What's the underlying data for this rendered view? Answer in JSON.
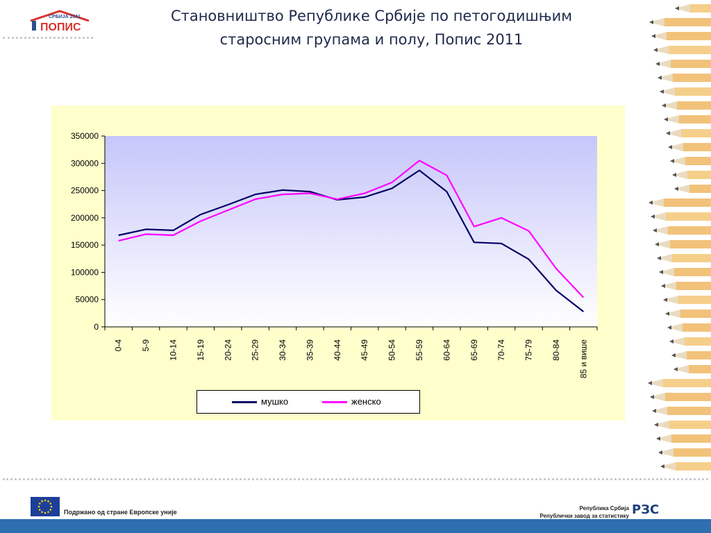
{
  "slide": {
    "title_line1": "Становништво Републике Србије по петогодишњим",
    "title_line2": "старосним групама и полу, Попис 2011"
  },
  "logo": {
    "top_text": "СРБИЈА 2011",
    "main_text": "ПОПИС"
  },
  "footer": {
    "eu_text": "Подржано од стране Европске уније",
    "rzs_line1": "Република Србија",
    "rzs_line2": "Републички завод за статистику",
    "rzs_logo": "РЗС"
  },
  "colors": {
    "male": "#000066",
    "female": "#ff00ff",
    "panel": "#ffffcc"
  },
  "chart_data": {
    "type": "line",
    "title": "",
    "xlabel": "",
    "ylabel": "",
    "ylim": [
      0,
      350000
    ],
    "yticks": [
      0,
      50000,
      100000,
      150000,
      200000,
      250000,
      300000,
      350000
    ],
    "categories": [
      "0-4",
      "5-9",
      "10-14",
      "15-19",
      "20-24",
      "25-29",
      "30-34",
      "35-39",
      "40-44",
      "45-49",
      "50-54",
      "55-59",
      "60-64",
      "65-69",
      "70-74",
      "75-79",
      "80-84",
      "85 и више"
    ],
    "series": [
      {
        "name": "мушко",
        "color": "#000066",
        "values": [
          168000,
          179000,
          177000,
          206000,
          224000,
          243000,
          251000,
          248000,
          233000,
          238000,
          254000,
          287000,
          248000,
          155000,
          153000,
          124000,
          67000,
          28000
        ]
      },
      {
        "name": "женско",
        "color": "#ff00ff",
        "values": [
          158000,
          170000,
          168000,
          194000,
          214000,
          234000,
          243000,
          245000,
          234000,
          245000,
          265000,
          305000,
          278000,
          184000,
          200000,
          176000,
          107000,
          54000
        ]
      }
    ],
    "legend_position": "bottom",
    "grid": false
  }
}
